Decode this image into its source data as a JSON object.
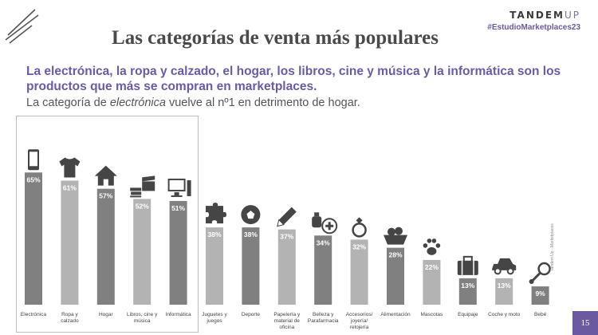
{
  "header": {
    "title": "Las categorías de venta más populares",
    "brand": "TANDEM",
    "brand_suffix": "UP",
    "hashtag": "#EstudioMarketplaces23"
  },
  "intro": {
    "bold_text": "La electrónica, la ropa y calzado, el hogar, los libros, cine y música y la informática son los productos que más se compran en marketplaces.",
    "normal_before": "La categoría de ",
    "normal_emph": "electrónica",
    "normal_after": " vuelve al nº1 en detrimento de hogar."
  },
  "side_note": "Tandem Up - Marketplaces",
  "page_number": "15",
  "colors": {
    "dark_bar": "#808080",
    "light_bar": "#b3b3b3",
    "icon": "#454545",
    "accent": "#6b5aa0"
  },
  "chart_data": {
    "type": "bar",
    "ylim": [
      0,
      100
    ],
    "unit": "%",
    "categories": [
      {
        "label": [
          "Electrónica"
        ],
        "value": 65,
        "icon": "smartphone-icon",
        "shade": "dark"
      },
      {
        "label": [
          "Ropa y",
          "calzado"
        ],
        "value": 61,
        "icon": "tshirt-icon",
        "shade": "light"
      },
      {
        "label": [
          "Hogar"
        ],
        "value": 57,
        "icon": "house-icon",
        "shade": "dark"
      },
      {
        "label": [
          "Libros, cine y",
          "música"
        ],
        "value": 52,
        "icon": "books-clapperboard-icon",
        "shade": "light"
      },
      {
        "label": [
          "Informática"
        ],
        "value": 51,
        "icon": "desktop-computer-icon",
        "shade": "dark"
      },
      {
        "label": [
          "Juguetes y",
          "juegos"
        ],
        "value": 38,
        "icon": "puzzle-icon",
        "shade": "light"
      },
      {
        "label": [
          "Deporte"
        ],
        "value": 38,
        "icon": "soccer-ball-icon",
        "shade": "dark"
      },
      {
        "label": [
          "Papelería y",
          "material de",
          "oficina"
        ],
        "value": 37,
        "icon": "pencil-icon",
        "shade": "light"
      },
      {
        "label": [
          "Belleza y",
          "Parafarmacia"
        ],
        "value": 34,
        "icon": "perfume-cross-icon",
        "shade": "dark"
      },
      {
        "label": [
          "Accesorios/",
          "joyería/",
          "relojería"
        ],
        "value": 32,
        "icon": "ring-icon",
        "shade": "light"
      },
      {
        "label": [
          "Alimentación"
        ],
        "value": 28,
        "icon": "fruit-basket-icon",
        "shade": "dark"
      },
      {
        "label": [
          "Mascotas"
        ],
        "value": 22,
        "icon": "paw-icon",
        "shade": "light"
      },
      {
        "label": [
          "Equipaje"
        ],
        "value": 13,
        "icon": "suitcase-icon",
        "shade": "dark"
      },
      {
        "label": [
          "Coche y moto"
        ],
        "value": 13,
        "icon": "car-icon",
        "shade": "light"
      },
      {
        "label": [
          "Bebé"
        ],
        "value": 9,
        "icon": "baby-rattle-icon",
        "shade": "dark"
      }
    ],
    "highlighted_first_n": 5
  }
}
